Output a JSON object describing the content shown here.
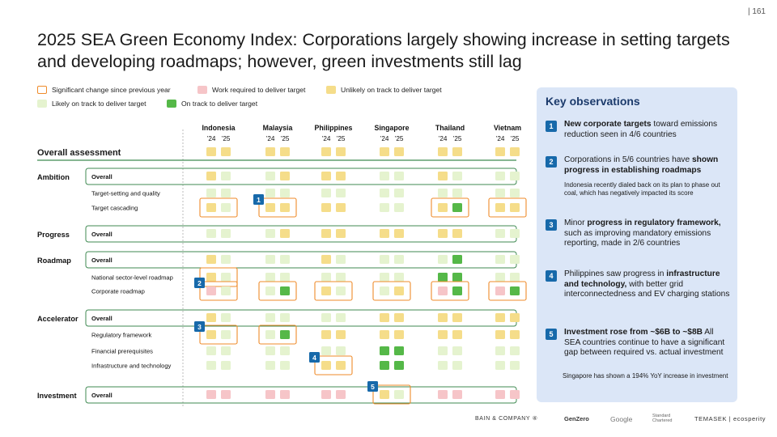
{
  "page_number": "| 161",
  "title": "2025 SEA Green Economy Index: Corporations largely showing increase in setting targets and developing roadmaps; however, green investments still lag",
  "legend": [
    {
      "key": "significant",
      "label": "Significant change since previous year"
    },
    {
      "key": "work",
      "label": "Work required to deliver target"
    },
    {
      "key": "unlikely",
      "label": "Unlikely on track to deliver target"
    },
    {
      "key": "likely",
      "label": "Likely on track to deliver target"
    },
    {
      "key": "ontrack",
      "label": "On track to deliver target"
    }
  ],
  "colors": {
    "work": "#f6c5c8",
    "unlikely": "#f5dd8a",
    "likely": "#e5f3cf",
    "ontrack": "#55b848",
    "highlight": "#ef8b2a",
    "badge": "#1769aa",
    "group_border": "#3f8a52"
  },
  "chart_data": {
    "type": "heatmap",
    "countries": [
      "Indonesia",
      "Malaysia",
      "Philippines",
      "Singapore",
      "Thailand",
      "Vietnam"
    ],
    "years": [
      "’24",
      "’25"
    ],
    "value_legend": {
      "W": "Work required to deliver target",
      "U": "Unlikely on track to deliver target",
      "L": "Likely on track to deliver target",
      "O": "On track to deliver target"
    },
    "rows": [
      {
        "section": "Overall assessment",
        "label": "",
        "type": "assessment",
        "values": [
          [
            "U",
            "U"
          ],
          [
            "U",
            "U"
          ],
          [
            "U",
            "U"
          ],
          [
            "U",
            "U"
          ],
          [
            "U",
            "U"
          ],
          [
            "U",
            "U"
          ]
        ]
      },
      {
        "section": "Ambition",
        "label": "Overall",
        "type": "overall",
        "values": [
          [
            "U",
            "L"
          ],
          [
            "L",
            "U"
          ],
          [
            "U",
            "U"
          ],
          [
            "L",
            "L"
          ],
          [
            "U",
            "L"
          ],
          [
            "L",
            "L"
          ]
        ]
      },
      {
        "section": "",
        "label": "Target-setting and quality",
        "type": "sub",
        "values": [
          [
            "L",
            "L"
          ],
          [
            "L",
            "L"
          ],
          [
            "L",
            "L"
          ],
          [
            "L",
            "L"
          ],
          [
            "L",
            "L"
          ],
          [
            "L",
            "L"
          ]
        ]
      },
      {
        "section": "",
        "label": "Target cascading",
        "type": "sub",
        "values": [
          [
            "U",
            "L"
          ],
          [
            "U",
            "U"
          ],
          [
            "U",
            "U"
          ],
          [
            "L",
            "L"
          ],
          [
            "U",
            "O"
          ],
          [
            "U",
            "U"
          ]
        ],
        "highlight": [
          0,
          1,
          4,
          5
        ]
      },
      {
        "section": "Progress",
        "label": "Overall",
        "type": "overall",
        "values": [
          [
            "L",
            "L"
          ],
          [
            "L",
            "U"
          ],
          [
            "U",
            "U"
          ],
          [
            "U",
            "U"
          ],
          [
            "U",
            "U"
          ],
          [
            "L",
            "L"
          ]
        ]
      },
      {
        "section": "Roadmap",
        "label": "Overall",
        "type": "overall",
        "values": [
          [
            "U",
            "L"
          ],
          [
            "L",
            "L"
          ],
          [
            "U",
            "L"
          ],
          [
            "L",
            "L"
          ],
          [
            "L",
            "O"
          ],
          [
            "L",
            "L"
          ]
        ]
      },
      {
        "section": "",
        "label": "National sector-level roadmap",
        "type": "sub",
        "values": [
          [
            "U",
            "L"
          ],
          [
            "L",
            "L"
          ],
          [
            "L",
            "L"
          ],
          [
            "L",
            "L"
          ],
          [
            "O",
            "O"
          ],
          [
            "L",
            "L"
          ]
        ],
        "highlight": [
          0
        ]
      },
      {
        "section": "",
        "label": "Corporate roadmap",
        "type": "sub",
        "values": [
          [
            "W",
            "L"
          ],
          [
            "L",
            "O"
          ],
          [
            "U",
            "L"
          ],
          [
            "L",
            "U"
          ],
          [
            "W",
            "O"
          ],
          [
            "W",
            "O"
          ]
        ],
        "highlight": [
          0,
          1,
          2,
          3,
          4,
          5
        ]
      },
      {
        "section": "Accelerator",
        "label": "Overall",
        "type": "overall",
        "values": [
          [
            "U",
            "L"
          ],
          [
            "L",
            "L"
          ],
          [
            "L",
            "L"
          ],
          [
            "U",
            "U"
          ],
          [
            "U",
            "U"
          ],
          [
            "U",
            "U"
          ]
        ]
      },
      {
        "section": "",
        "label": "Regulatory framework",
        "type": "sub",
        "values": [
          [
            "U",
            "L"
          ],
          [
            "L",
            "O"
          ],
          [
            "U",
            "U"
          ],
          [
            "U",
            "U"
          ],
          [
            "U",
            "U"
          ],
          [
            "U",
            "U"
          ]
        ],
        "highlight": [
          0,
          1
        ]
      },
      {
        "section": "",
        "label": "Financial prerequisites",
        "type": "sub",
        "values": [
          [
            "L",
            "L"
          ],
          [
            "L",
            "L"
          ],
          [
            "L",
            "L"
          ],
          [
            "O",
            "O"
          ],
          [
            "L",
            "L"
          ],
          [
            "L",
            "L"
          ]
        ]
      },
      {
        "section": "",
        "label": "Infrastructure and technology",
        "type": "sub",
        "values": [
          [
            "L",
            "L"
          ],
          [
            "L",
            "L"
          ],
          [
            "U",
            "U"
          ],
          [
            "O",
            "O"
          ],
          [
            "L",
            "L"
          ],
          [
            "L",
            "L"
          ]
        ],
        "highlight": [
          2
        ]
      },
      {
        "section": "Investment",
        "label": "Overall",
        "type": "overall",
        "values": [
          [
            "W",
            "W"
          ],
          [
            "W",
            "W"
          ],
          [
            "W",
            "W"
          ],
          [
            "U",
            "L"
          ],
          [
            "W",
            "W"
          ],
          [
            "W",
            "W"
          ]
        ],
        "highlight": [
          3
        ]
      }
    ],
    "markers": [
      {
        "number": "1",
        "row": 3,
        "country": 1
      },
      {
        "number": "2",
        "row": 7,
        "country": 0
      },
      {
        "number": "3",
        "row": 9,
        "country": 0
      },
      {
        "number": "4",
        "row": 11,
        "country": 2
      },
      {
        "number": "5",
        "row": 12,
        "country": 3
      }
    ]
  },
  "observations_title": "Key observations",
  "observations": [
    {
      "number": "1",
      "html": "<b>New corporate targets</b> toward emissions reduction seen in 4/6 countries",
      "sub": ""
    },
    {
      "number": "2",
      "html": "Corporations in 5/6 countries have <b>shown progress in establishing roadmaps</b>",
      "sub": "Indonesia recently dialed back on its plan to phase out coal, which has negatively impacted its score"
    },
    {
      "number": "3",
      "html": "Minor <b>progress in regulatory framework,</b> such as improving mandatory emissions reporting, made in 2/6 countries",
      "sub": ""
    },
    {
      "number": "4",
      "html": "Philippines saw progress in <b>infrastructure and technology,</b> with better grid interconnectedness and EV charging stations",
      "sub": ""
    },
    {
      "number": "5",
      "html": "<b>Investment rose from ~$6B to ~$8B</b> All SEA countries continue to have a significant gap between required vs. actual investment",
      "sub": "Singapore has shown a 194% YoY increase in investment"
    }
  ],
  "footer_logos": [
    "BAIN & COMPANY ④",
    "GenZero",
    "Google",
    "Standard Chartered",
    "TEMASEK | ecosperity"
  ]
}
